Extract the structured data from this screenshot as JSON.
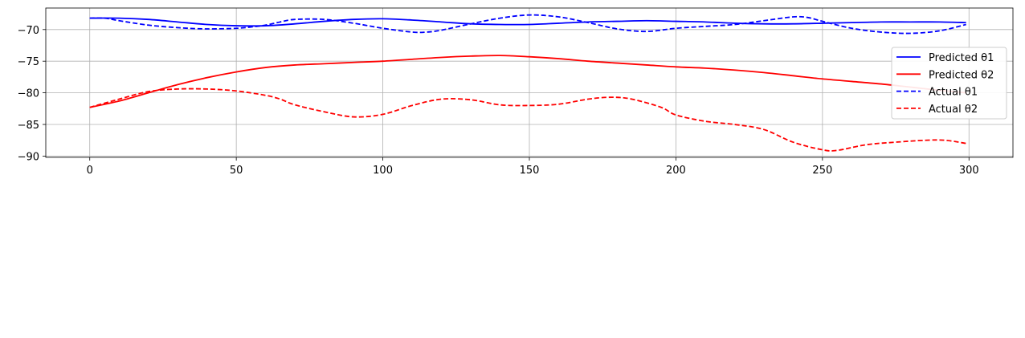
{
  "chart_data": {
    "type": "line",
    "xlim": [
      -15,
      315
    ],
    "ylim": [
      -90.2,
      -66.6
    ],
    "xticks": [
      0,
      50,
      100,
      150,
      200,
      250,
      300
    ],
    "yticks": [
      -70,
      -75,
      -80,
      -85,
      -90
    ],
    "xtick_labels": [
      "0",
      "50",
      "100",
      "150",
      "200",
      "250",
      "300"
    ],
    "ytick_labels": [
      "−70",
      "−75",
      "−80",
      "−85",
      "−90"
    ],
    "grid": true,
    "legend_position": "right",
    "series": [
      {
        "name": "Predicted θ1",
        "color": "#0000ff",
        "dash": "solid",
        "points": [
          [
            0,
            -68.2
          ],
          [
            10,
            -68.2
          ],
          [
            20,
            -68.4
          ],
          [
            30,
            -68.8
          ],
          [
            40,
            -69.2
          ],
          [
            50,
            -69.4
          ],
          [
            60,
            -69.4
          ],
          [
            70,
            -69.1
          ],
          [
            80,
            -68.7
          ],
          [
            90,
            -68.4
          ],
          [
            100,
            -68.3
          ],
          [
            110,
            -68.5
          ],
          [
            120,
            -68.8
          ],
          [
            130,
            -69.1
          ],
          [
            140,
            -69.2
          ],
          [
            150,
            -69.2
          ],
          [
            160,
            -69.0
          ],
          [
            170,
            -68.8
          ],
          [
            180,
            -68.7
          ],
          [
            190,
            -68.6
          ],
          [
            200,
            -68.7
          ],
          [
            210,
            -68.8
          ],
          [
            220,
            -69.0
          ],
          [
            230,
            -69.1
          ],
          [
            240,
            -69.1
          ],
          [
            250,
            -69.0
          ],
          [
            260,
            -68.9
          ],
          [
            270,
            -68.8
          ],
          [
            280,
            -68.8
          ],
          [
            290,
            -68.8
          ],
          [
            299,
            -68.9
          ]
        ]
      },
      {
        "name": "Predicted θ2",
        "color": "#ff0000",
        "dash": "solid",
        "points": [
          [
            0,
            -82.3
          ],
          [
            10,
            -81.3
          ],
          [
            20,
            -80.0
          ],
          [
            30,
            -78.7
          ],
          [
            40,
            -77.6
          ],
          [
            50,
            -76.7
          ],
          [
            60,
            -76.0
          ],
          [
            70,
            -75.6
          ],
          [
            80,
            -75.4
          ],
          [
            90,
            -75.2
          ],
          [
            100,
            -75.0
          ],
          [
            110,
            -74.7
          ],
          [
            120,
            -74.4
          ],
          [
            130,
            -74.2
          ],
          [
            140,
            -74.1
          ],
          [
            150,
            -74.3
          ],
          [
            160,
            -74.6
          ],
          [
            170,
            -75.0
          ],
          [
            180,
            -75.3
          ],
          [
            190,
            -75.6
          ],
          [
            200,
            -75.9
          ],
          [
            210,
            -76.1
          ],
          [
            220,
            -76.4
          ],
          [
            230,
            -76.8
          ],
          [
            240,
            -77.3
          ],
          [
            250,
            -77.8
          ],
          [
            260,
            -78.2
          ],
          [
            270,
            -78.6
          ],
          [
            280,
            -79.1
          ],
          [
            290,
            -79.6
          ],
          [
            299,
            -80.0
          ]
        ]
      },
      {
        "name": "Actual θ1",
        "color": "#0000ff",
        "dash": "dashed",
        "points": [
          [
            0,
            -68.2
          ],
          [
            5,
            -68.2
          ],
          [
            10,
            -68.6
          ],
          [
            20,
            -69.3
          ],
          [
            30,
            -69.7
          ],
          [
            40,
            -69.9
          ],
          [
            50,
            -69.8
          ],
          [
            55,
            -69.6
          ],
          [
            60,
            -69.3
          ],
          [
            65,
            -68.8
          ],
          [
            70,
            -68.4
          ],
          [
            80,
            -68.4
          ],
          [
            90,
            -69.0
          ],
          [
            100,
            -69.8
          ],
          [
            110,
            -70.4
          ],
          [
            115,
            -70.4
          ],
          [
            120,
            -70.1
          ],
          [
            130,
            -69.1
          ],
          [
            140,
            -68.2
          ],
          [
            150,
            -67.7
          ],
          [
            160,
            -68.0
          ],
          [
            170,
            -68.9
          ],
          [
            180,
            -69.9
          ],
          [
            190,
            -70.3
          ],
          [
            200,
            -69.8
          ],
          [
            210,
            -69.5
          ],
          [
            220,
            -69.2
          ],
          [
            230,
            -68.6
          ],
          [
            240,
            -68.0
          ],
          [
            245,
            -68.1
          ],
          [
            250,
            -68.7
          ],
          [
            260,
            -69.8
          ],
          [
            270,
            -70.4
          ],
          [
            280,
            -70.6
          ],
          [
            290,
            -70.2
          ],
          [
            299,
            -69.2
          ]
        ]
      },
      {
        "name": "Actual θ2",
        "color": "#ff0000",
        "dash": "dashed",
        "points": [
          [
            0,
            -82.3
          ],
          [
            10,
            -81.0
          ],
          [
            20,
            -79.8
          ],
          [
            30,
            -79.4
          ],
          [
            40,
            -79.4
          ],
          [
            50,
            -79.7
          ],
          [
            60,
            -80.4
          ],
          [
            65,
            -81.0
          ],
          [
            70,
            -81.9
          ],
          [
            80,
            -83.0
          ],
          [
            90,
            -83.8
          ],
          [
            100,
            -83.4
          ],
          [
            110,
            -82.0
          ],
          [
            120,
            -81.0
          ],
          [
            130,
            -81.1
          ],
          [
            140,
            -81.9
          ],
          [
            150,
            -82.0
          ],
          [
            160,
            -81.8
          ],
          [
            170,
            -81.0
          ],
          [
            178,
            -80.7
          ],
          [
            185,
            -81.0
          ],
          [
            195,
            -82.3
          ],
          [
            200,
            -83.5
          ],
          [
            210,
            -84.5
          ],
          [
            220,
            -85.0
          ],
          [
            230,
            -85.8
          ],
          [
            240,
            -87.8
          ],
          [
            250,
            -89.0
          ],
          [
            255,
            -89.1
          ],
          [
            265,
            -88.2
          ],
          [
            275,
            -87.8
          ],
          [
            285,
            -87.5
          ],
          [
            292,
            -87.5
          ],
          [
            299,
            -88.0
          ]
        ]
      }
    ]
  }
}
